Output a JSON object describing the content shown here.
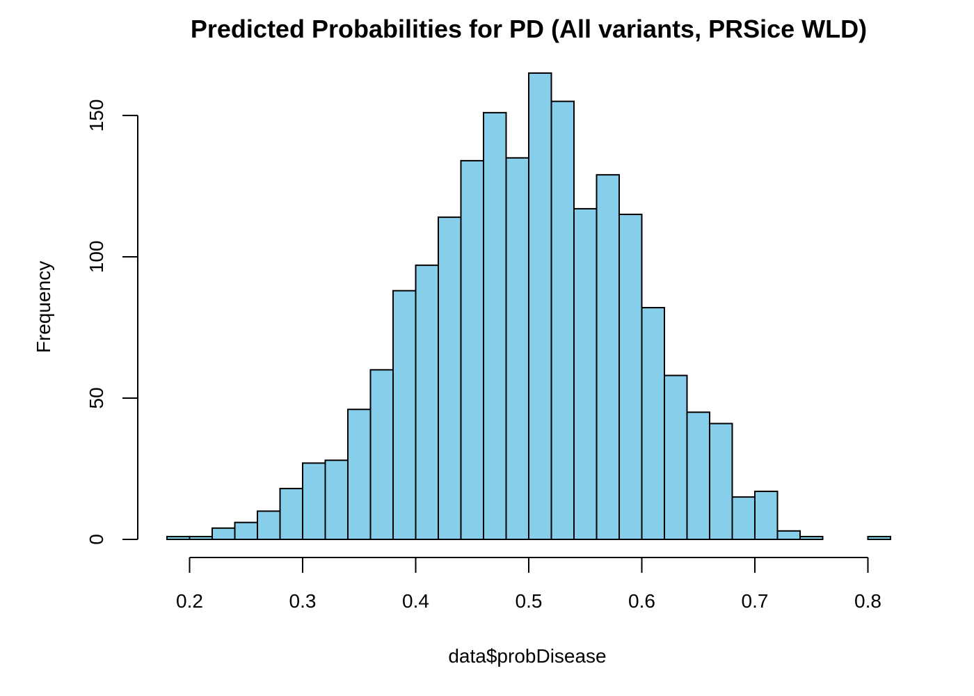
{
  "chart_data": {
    "type": "bar",
    "title": "Predicted Probabilities for PD (All variants, PRSice WLD)",
    "xlabel": "data$probDisease",
    "ylabel": "Frequency",
    "bar_color": "#87CEEB",
    "border_color": "#000000",
    "bin_edges": [
      0.18,
      0.2,
      0.22,
      0.24,
      0.26,
      0.28,
      0.3,
      0.32,
      0.34,
      0.36,
      0.38,
      0.4,
      0.42,
      0.44,
      0.46,
      0.48,
      0.5,
      0.52,
      0.54,
      0.56,
      0.58,
      0.6,
      0.62,
      0.64,
      0.66,
      0.68,
      0.7,
      0.72,
      0.74,
      0.76,
      0.78,
      0.8,
      0.82
    ],
    "values": [
      1,
      1,
      4,
      6,
      10,
      18,
      27,
      28,
      46,
      60,
      88,
      97,
      114,
      134,
      151,
      135,
      165,
      155,
      117,
      129,
      115,
      82,
      58,
      45,
      41,
      15,
      17,
      3,
      1,
      0,
      0,
      1
    ],
    "xlim": [
      0.18,
      0.82
    ],
    "ylim": [
      0,
      165
    ],
    "x_ticks": [
      0.2,
      0.3,
      0.4,
      0.5,
      0.6,
      0.7,
      0.8
    ],
    "x_tick_labels": [
      "0.2",
      "0.3",
      "0.4",
      "0.5",
      "0.6",
      "0.7",
      "0.8"
    ],
    "y_ticks": [
      0,
      50,
      100,
      150
    ],
    "y_tick_labels": [
      "0",
      "50",
      "100",
      "150"
    ],
    "grid": false,
    "legend": "none"
  }
}
